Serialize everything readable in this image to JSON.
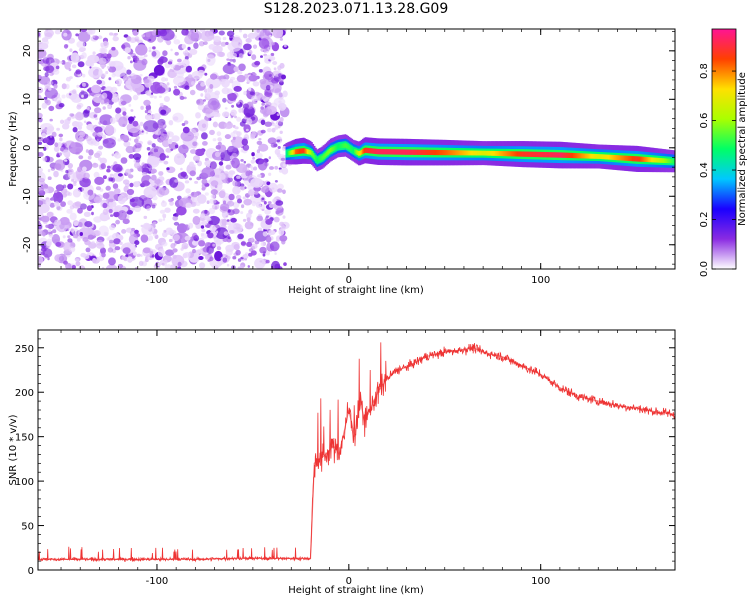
{
  "figure": {
    "title": "S128.2023.071.13.28.G09"
  },
  "colorbar": {
    "label": "Normalized spectral amplitude",
    "ticks": [
      0.0,
      0.2,
      0.4,
      0.6,
      0.8
    ],
    "tick_labels": [
      "0.0",
      "0.2",
      "0.4",
      "0.6",
      "0.8"
    ],
    "range": [
      0,
      0.97
    ],
    "colormap": [
      "#ffffff",
      "#8a2be2",
      "#1a00ff",
      "#00c8ff",
      "#00ff66",
      "#aaff00",
      "#ffe000",
      "#ff4000",
      "#ff1493"
    ]
  },
  "chart_data": [
    {
      "type": "heatmap",
      "xlabel": "Height of straight line (km)",
      "ylabel": "Frequency (Hz)",
      "xlim": [
        -162,
        170
      ],
      "ylim": [
        -25,
        24.5
      ],
      "xticks": [
        -100,
        0,
        100
      ],
      "xtick_labels": [
        "-100",
        "0",
        "100"
      ],
      "yticks": [
        -20,
        -10,
        0,
        10,
        20
      ],
      "ytick_labels": [
        "-20",
        "-10",
        "0",
        "10",
        "20"
      ],
      "noise_region_x": [
        -162,
        -33
      ],
      "ridge": {
        "x": [
          -33,
          -28,
          -24,
          -20,
          -17,
          -14,
          -10,
          -6,
          -2,
          2,
          5,
          8,
          15,
          30,
          50,
          70,
          90,
          110,
          130,
          150,
          170
        ],
        "y": [
          -1.2,
          -0.8,
          -0.6,
          -1.0,
          -2.6,
          -2.0,
          -0.5,
          0.3,
          0.5,
          -0.6,
          -1.2,
          -0.5,
          -0.8,
          -0.9,
          -1.0,
          -1.1,
          -1.3,
          -1.5,
          -1.8,
          -2.3,
          -2.8
        ],
        "amplitude": [
          0.45,
          0.85,
          0.9,
          0.6,
          0.5,
          0.55,
          0.6,
          0.5,
          0.55,
          0.5,
          0.7,
          0.9,
          0.95,
          0.95,
          0.85,
          0.7,
          0.9,
          0.95,
          0.7,
          0.9,
          0.5
        ]
      }
    },
    {
      "type": "line",
      "xlabel": "Height of straight line (km)",
      "ylabel": "SNR (10 * v/v)",
      "xlim": [
        -162,
        170
      ],
      "ylim": [
        0,
        270
      ],
      "xticks": [
        -100,
        0,
        100
      ],
      "xtick_labels": [
        "-100",
        "0",
        "100"
      ],
      "yticks": [
        0,
        50,
        100,
        150,
        200,
        250
      ],
      "ytick_labels": [
        "0",
        "50",
        "100",
        "150",
        "200",
        "250"
      ],
      "line_color": "#ee3333",
      "series": [
        {
          "x": [
            -162,
            -140,
            -120,
            -100,
            -80,
            -60,
            -40,
            -25,
            -20,
            -18,
            -15,
            -12,
            -8,
            -5,
            -2,
            0,
            3,
            6,
            8,
            10,
            15,
            20,
            25,
            30,
            40,
            50,
            60,
            65,
            70,
            80,
            90,
            100,
            110,
            120,
            130,
            140,
            150,
            160,
            170
          ],
          "y": [
            12,
            12,
            12,
            12,
            12,
            13,
            13,
            13,
            13,
            120,
            125,
            130,
            140,
            130,
            160,
            180,
            150,
            190,
            170,
            175,
            200,
            215,
            225,
            228,
            240,
            245,
            248,
            250,
            245,
            240,
            230,
            220,
            205,
            195,
            190,
            185,
            182,
            178,
            175
          ]
        }
      ]
    }
  ]
}
